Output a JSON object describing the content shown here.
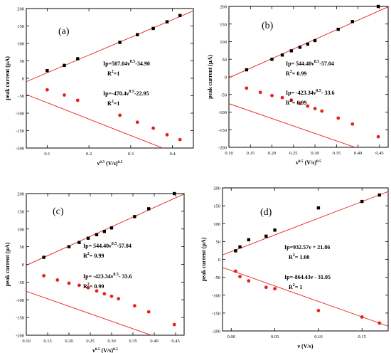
{
  "colors": {
    "anodic": "#000000",
    "cathodic": "#e8211c",
    "fit": "#e8211c",
    "axis": "#000000"
  },
  "chart_data": [
    {
      "type": "scatter",
      "panel": "(a)",
      "ylabel": "peak current (µA)",
      "xlabel_base": "ν",
      "xlabel_exp": "0.5",
      "xlabel_units": " (V/s)",
      "xlabel_units_exp": "0.5",
      "xlim": [
        0.05,
        0.45
      ],
      "ylim": [
        -200,
        200
      ],
      "xticks": [
        "0.1",
        "0.2",
        "0.3",
        "0.4"
      ],
      "yticks": [
        "200",
        "150",
        "100",
        "50",
        "0",
        "-50",
        "-100",
        "-150",
        "-200"
      ],
      "series": [
        {
          "marker": "square",
          "color": "#000000",
          "x": [
            0.1,
            0.141,
            0.173,
            0.274,
            0.316,
            0.354,
            0.387,
            0.418
          ],
          "y": [
            22,
            37,
            56,
            103,
            125,
            143,
            162,
            180
          ]
        },
        {
          "marker": "circle",
          "color": "#e8211c",
          "x": [
            0.1,
            0.141,
            0.173,
            0.274,
            0.316,
            0.354,
            0.387,
            0.418
          ],
          "y": [
            -33,
            -48,
            -63,
            -106,
            -126,
            -143,
            -162,
            -176
          ]
        }
      ],
      "fits": [
        {
          "slope": 507.04,
          "intercept": -34.9
        },
        {
          "slope": -470.4,
          "intercept": -22.95
        }
      ],
      "annotations": [
        {
          "base": "Ip=507.04ν",
          "exp": "0.5",
          "rest": "-34.90",
          "r_base": "R",
          "r_exp": "2",
          "r_rest": "=1",
          "r_sep": false
        },
        {
          "base": "Ip=-470.4ν",
          "exp": "0.5",
          "rest": "-22.95",
          "r_base": "R",
          "r_exp": "2",
          "r_rest": "=1",
          "r_sep": false
        }
      ]
    },
    {
      "type": "scatter",
      "panel": "(b)",
      "ylabel": "peak current (µA)",
      "xlabel_base": "ν",
      "xlabel_exp": "0.5",
      "xlabel_units": " (V/s)",
      "xlabel_units_exp": "0.5",
      "xlim": [
        0.1,
        0.47
      ],
      "ylim": [
        -200,
        200
      ],
      "xticks": [
        "0.10",
        "0.15",
        "0.20",
        "0.25",
        "0.30",
        "0.35",
        "0.40",
        "0.45"
      ],
      "yticks": [
        "200",
        "150",
        "100",
        "50",
        "0",
        "-50",
        "-100",
        "-150",
        "-200"
      ],
      "series": [
        {
          "marker": "square",
          "color": "#000000",
          "x": [
            0.141,
            0.2,
            0.224,
            0.245,
            0.265,
            0.283,
            0.3,
            0.354,
            0.387,
            0.447
          ],
          "y": [
            20,
            50,
            62,
            74,
            84,
            93,
            103,
            135,
            157,
            200
          ]
        },
        {
          "marker": "circle",
          "color": "#e8211c",
          "x": [
            0.141,
            0.173,
            0.2,
            0.224,
            0.245,
            0.265,
            0.283,
            0.3,
            0.316,
            0.354,
            0.387,
            0.447
          ],
          "y": [
            -32,
            -44,
            -53,
            -59,
            -66,
            -75,
            -83,
            -90,
            -97,
            -117,
            -134,
            -170
          ]
        }
      ],
      "fits": [
        {
          "slope": 544.4,
          "intercept": -57.04
        },
        {
          "slope": -423.34,
          "intercept": -33.6
        }
      ],
      "annotations": [
        {
          "base": "Ip= 544.40ν",
          "exp": "0.5",
          "rest": "-57.04",
          "r_base": "R",
          "r_exp": "2",
          "r_rest": "= 0.99",
          "r_sep": true
        },
        {
          "base": "Ip= -423.34ν",
          "exp": "0.5",
          "rest": "- 33.6",
          "r_base": "R",
          "r_exp": "2",
          "r_rest": "= 0.99",
          "r_sep": true
        }
      ]
    },
    {
      "type": "scatter",
      "panel": "(c)",
      "ylabel": "peak current (µA)",
      "xlabel_base": "ν",
      "xlabel_exp": "0.5",
      "xlabel_units": " (V/s)",
      "xlabel_units_exp": "0.5",
      "xlim": [
        0.1,
        0.47
      ],
      "ylim": [
        -200,
        200
      ],
      "xticks": [
        "0.10",
        "0.15",
        "0.20",
        "0.25",
        "0.30",
        "0.35",
        "0.40",
        "0.45"
      ],
      "yticks": [
        "200",
        "150",
        "100",
        "50",
        "0",
        "-50",
        "-100",
        "-150",
        "-200"
      ],
      "series": [
        {
          "marker": "square",
          "color": "#000000",
          "x": [
            0.141,
            0.2,
            0.224,
            0.245,
            0.265,
            0.283,
            0.3,
            0.354,
            0.387,
            0.447
          ],
          "y": [
            20,
            50,
            62,
            74,
            84,
            93,
            103,
            135,
            157,
            200
          ]
        },
        {
          "marker": "circle",
          "color": "#e8211c",
          "x": [
            0.141,
            0.173,
            0.2,
            0.224,
            0.245,
            0.265,
            0.283,
            0.3,
            0.316,
            0.354,
            0.387,
            0.447
          ],
          "y": [
            -32,
            -44,
            -53,
            -59,
            -66,
            -75,
            -83,
            -90,
            -97,
            -117,
            -134,
            -170
          ]
        }
      ],
      "fits": [
        {
          "slope": 544.4,
          "intercept": -57.04
        },
        {
          "slope": -423.34,
          "intercept": -33.6
        }
      ],
      "annotations": [
        {
          "base": "Ip= 544.40ν",
          "exp": "0.5",
          "rest": "-57.04",
          "r_base": "R",
          "r_exp": "2",
          "r_rest": "= 0.99",
          "r_sep": true
        },
        {
          "base": "Ip= -423.34ν",
          "exp": "0.5",
          "rest": "- 33.6",
          "r_base": "R",
          "r_exp": "2",
          "r_rest": "= 0.99",
          "r_sep": true
        }
      ]
    },
    {
      "type": "scatter",
      "panel": "(d)",
      "ylabel": "peak current (µA)",
      "xlabel_base": "ν (V/s)",
      "xlabel_exp": "",
      "xlabel_units": "",
      "xlabel_units_exp": "",
      "xlim": [
        -0.01,
        0.18
      ],
      "ylim": [
        -200,
        200
      ],
      "xticks": [
        "0.00",
        "0.05",
        "0.10",
        "0.15"
      ],
      "yticks": [
        "200",
        "150",
        "100",
        "50",
        "0",
        "-50",
        "-100",
        "-150",
        "-200"
      ],
      "series": [
        {
          "marker": "square",
          "color": "#000000",
          "x": [
            0.005,
            0.01,
            0.02,
            0.04,
            0.05,
            0.1,
            0.15,
            0.17
          ],
          "y": [
            24,
            35,
            55,
            65,
            82,
            144,
            162,
            180
          ]
        },
        {
          "marker": "circle",
          "color": "#e8211c",
          "x": [
            0.005,
            0.01,
            0.02,
            0.04,
            0.05,
            0.1,
            0.15,
            0.17
          ],
          "y": [
            -33,
            -48,
            -60,
            -78,
            -82,
            -143,
            -161,
            -178
          ]
        }
      ],
      "fits": [
        {
          "slope": 932.57,
          "intercept": 21.86
        },
        {
          "slope": -864.43,
          "intercept": -31.05
        }
      ],
      "annotations": [
        {
          "base": "Ip=932.57ν + 21.86",
          "exp": "",
          "rest": "",
          "r_base": "R",
          "r_exp": "2",
          "r_rest": "= 1.00",
          "r_sep": false
        },
        {
          "base": "Ip=-864.43ν - 31.05",
          "exp": "",
          "rest": "",
          "r_base": "R",
          "r_exp": "2",
          "r_rest": "= 1",
          "r_sep": false
        }
      ]
    }
  ]
}
